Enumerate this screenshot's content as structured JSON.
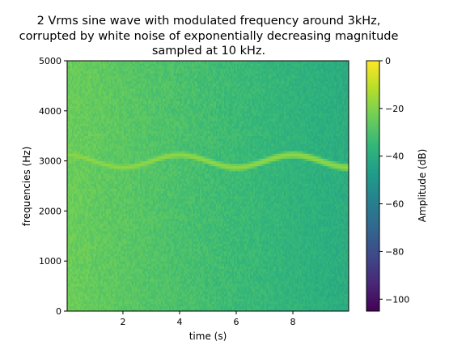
{
  "chart_data": {
    "type": "heatmap",
    "title_lines": [
      "2 Vrms sine wave with modulated frequency around 3kHz,",
      "corrupted by white noise of exponentially decreasing magnitude",
      "sampled at 10 kHz."
    ],
    "xlabel": "time (s)",
    "ylabel": "frequencies (Hz)",
    "xlim": [
      0.03,
      9.97
    ],
    "ylim": [
      0,
      5000
    ],
    "x_ticks": [
      2,
      4,
      6,
      8
    ],
    "y_ticks": [
      0,
      1000,
      2000,
      3000,
      4000,
      5000
    ],
    "colorbar": {
      "label": "Amplitude (dB)",
      "range": [
        -105,
        0
      ],
      "ticks": [
        0,
        -20,
        -40,
        -60,
        -80,
        -100
      ],
      "tick_labels": [
        "0",
        "−20",
        "−40",
        "−60",
        "−80",
        "−100"
      ],
      "colormap": "viridis"
    },
    "signal": {
      "center_hz": 3000,
      "modulation_depth_hz": 125,
      "modulation_period_s": 4,
      "level_db": -18
    },
    "noise": {
      "level_db_start": -24,
      "level_db_end": -40,
      "variation_db": 3
    },
    "grid": false
  },
  "colors": {
    "viridis": [
      "#440154",
      "#482878",
      "#3e4989",
      "#31688e",
      "#26828e",
      "#1f9e89",
      "#35b779",
      "#6ece58",
      "#b5de2b",
      "#fde725"
    ]
  }
}
